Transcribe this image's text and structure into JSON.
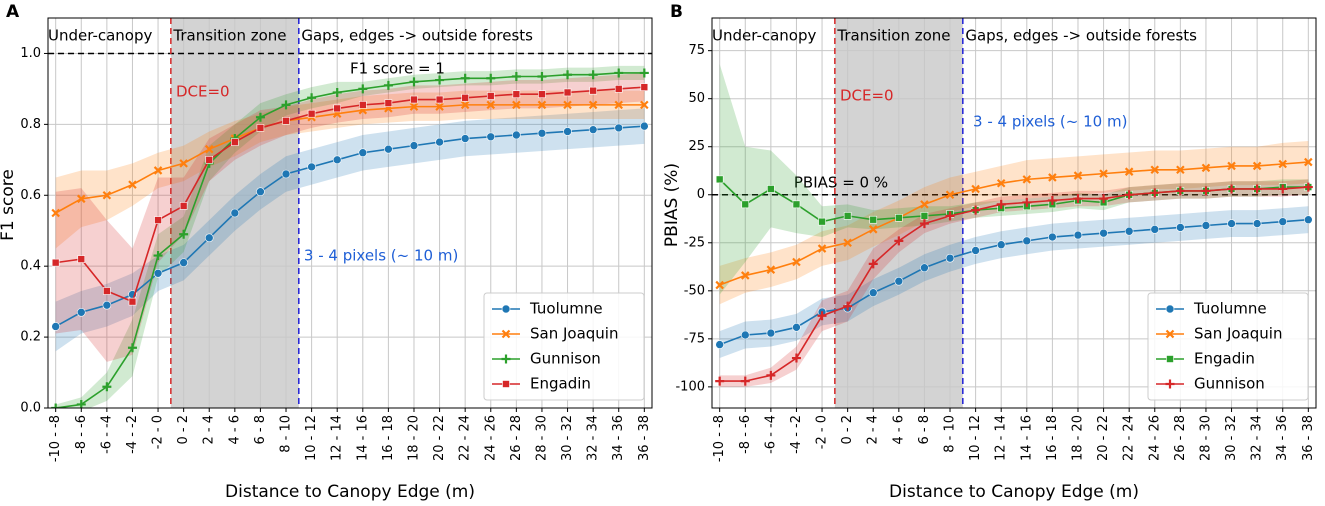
{
  "chart_data": [
    {
      "type": "line",
      "panel_label": "A",
      "ylabel": "F1 score",
      "xlabel": "Distance to Canopy Edge (m)",
      "categories": [
        "-10 - -8",
        "-8 - -6",
        "-6 - -4",
        "-4 - -2",
        "-2 - 0",
        "0 - 2",
        "2 - 4",
        "4 - 6",
        "6 - 8",
        "8 - 10",
        "10 - 12",
        "12 - 14",
        "14 - 16",
        "16 - 18",
        "18 - 20",
        "20 - 22",
        "22 - 24",
        "24 - 26",
        "26 - 28",
        "28 - 30",
        "30 - 32",
        "32 - 34",
        "34 - 36",
        "36 - 38"
      ],
      "series": [
        {
          "name": "Tuolumne",
          "color": "#1f77b4",
          "marker": "circle",
          "values": [
            0.23,
            0.27,
            0.29,
            0.32,
            0.38,
            0.41,
            0.48,
            0.55,
            0.61,
            0.66,
            0.68,
            0.7,
            0.72,
            0.73,
            0.74,
            0.75,
            0.76,
            0.765,
            0.77,
            0.775,
            0.78,
            0.785,
            0.79,
            0.795
          ],
          "spread": [
            0.07,
            0.06,
            0.06,
            0.06,
            0.05,
            0.05,
            0.05,
            0.05,
            0.05,
            0.05,
            0.05,
            0.05,
            0.05,
            0.05,
            0.05,
            0.05,
            0.05,
            0.05,
            0.05,
            0.05,
            0.05,
            0.05,
            0.05,
            0.05
          ]
        },
        {
          "name": "San Joaquin",
          "color": "#ff7f0e",
          "marker": "x",
          "values": [
            0.55,
            0.59,
            0.6,
            0.63,
            0.67,
            0.69,
            0.73,
            0.76,
            0.79,
            0.81,
            0.82,
            0.83,
            0.84,
            0.845,
            0.85,
            0.85,
            0.855,
            0.855,
            0.855,
            0.855,
            0.855,
            0.855,
            0.855,
            0.855
          ],
          "spread": [
            0.1,
            0.08,
            0.07,
            0.06,
            0.05,
            0.05,
            0.05,
            0.05,
            0.04,
            0.04,
            0.04,
            0.04,
            0.04,
            0.04,
            0.04,
            0.04,
            0.04,
            0.04,
            0.04,
            0.04,
            0.04,
            0.04,
            0.04,
            0.04
          ]
        },
        {
          "name": "Gunnison",
          "color": "#2ca02c",
          "marker": "plus",
          "values": [
            0.0,
            0.01,
            0.06,
            0.17,
            0.43,
            0.49,
            0.69,
            0.76,
            0.82,
            0.855,
            0.875,
            0.89,
            0.9,
            0.91,
            0.92,
            0.925,
            0.93,
            0.93,
            0.935,
            0.935,
            0.94,
            0.94,
            0.945,
            0.945
          ],
          "spread": [
            0.01,
            0.02,
            0.04,
            0.08,
            0.06,
            0.05,
            0.05,
            0.04,
            0.04,
            0.03,
            0.03,
            0.03,
            0.02,
            0.02,
            0.02,
            0.02,
            0.02,
            0.02,
            0.02,
            0.02,
            0.02,
            0.02,
            0.02,
            0.02
          ]
        },
        {
          "name": "Engadin",
          "color": "#d62728",
          "marker": "square",
          "values": [
            0.41,
            0.42,
            0.33,
            0.3,
            0.53,
            0.57,
            0.7,
            0.75,
            0.79,
            0.81,
            0.83,
            0.845,
            0.855,
            0.86,
            0.87,
            0.87,
            0.875,
            0.88,
            0.885,
            0.885,
            0.89,
            0.895,
            0.9,
            0.905
          ],
          "spread": [
            0.2,
            0.2,
            0.2,
            0.15,
            0.12,
            0.08,
            0.06,
            0.05,
            0.05,
            0.04,
            0.04,
            0.04,
            0.04,
            0.04,
            0.04,
            0.04,
            0.04,
            0.04,
            0.04,
            0.04,
            0.04,
            0.04,
            0.04,
            0.04
          ]
        }
      ],
      "ylim": [
        0,
        1.1
      ],
      "yticks": [
        {
          "value": 0,
          "label": "0.0"
        },
        0.2,
        0.4,
        0.6,
        0.8,
        {
          "value": 1,
          "label": "1.0"
        }
      ],
      "grid": true,
      "legend": "lower right",
      "reference_line": {
        "value": 1,
        "label": "F1 score = 1"
      },
      "annotations": [
        "Under-canopy",
        "Transition zone",
        "Gaps, edges -> outside forests",
        "DCE=0",
        "3 - 4 pixels (~ 10 m)"
      ]
    },
    {
      "type": "line",
      "panel_label": "B",
      "ylabel": "PBIAS (%)",
      "xlabel": "Distance to Canopy Edge (m)",
      "categories": [
        "-10 - -8",
        "-8 - -6",
        "-6 - -4",
        "-4 - -2",
        "-2 - 0",
        "0 - 2",
        "2 - 4",
        "4 - 6",
        "6 - 8",
        "8 - 10",
        "10 - 12",
        "12 - 14",
        "14 - 16",
        "16 - 18",
        "18 - 20",
        "20 - 22",
        "22 - 24",
        "24 - 26",
        "26 - 28",
        "28 - 30",
        "30 - 32",
        "32 - 34",
        "34 - 36",
        "36 - 38"
      ],
      "series": [
        {
          "name": "Tuolumne",
          "color": "#1f77b4",
          "marker": "circle",
          "values": [
            -78,
            -73,
            -72,
            -69,
            -61,
            -59,
            -51,
            -45,
            -38,
            -33,
            -29,
            -26,
            -24,
            -22,
            -21,
            -20,
            -19,
            -18,
            -17,
            -16,
            -15,
            -15,
            -14,
            -13
          ],
          "spread": [
            7,
            7,
            7,
            7,
            7,
            7,
            7,
            7,
            7,
            7,
            7,
            7,
            7,
            7,
            7,
            7,
            7,
            7,
            7,
            7,
            7,
            7,
            7,
            7
          ]
        },
        {
          "name": "San Joaquin",
          "color": "#ff7f0e",
          "marker": "x",
          "values": [
            -47,
            -42,
            -39,
            -35,
            -28,
            -25,
            -18,
            -12,
            -5,
            0,
            3,
            6,
            8,
            9,
            10,
            11,
            12,
            13,
            13,
            14,
            15,
            15,
            16,
            17
          ],
          "spread": [
            10,
            9,
            9,
            9,
            9,
            9,
            9,
            9,
            9,
            9,
            9,
            9,
            10,
            10,
            10,
            10,
            10,
            10,
            10,
            10,
            10,
            10,
            11,
            11
          ]
        },
        {
          "name": "Engadin",
          "color": "#2ca02c",
          "marker": "square",
          "values": [
            8,
            -5,
            3,
            -5,
            -14,
            -11,
            -13,
            -12,
            -11,
            -10,
            -8,
            -7,
            -6,
            -5,
            -3,
            -4,
            0,
            1,
            2,
            2,
            3,
            3,
            4,
            4
          ],
          "spread": [
            60,
            30,
            20,
            15,
            8,
            6,
            5,
            5,
            5,
            4,
            4,
            4,
            4,
            4,
            4,
            4,
            4,
            4,
            4,
            4,
            4,
            4,
            4,
            4
          ]
        },
        {
          "name": "Gunnison",
          "color": "#d62728",
          "marker": "plus",
          "values": [
            -97,
            -97,
            -94,
            -85,
            -63,
            -58,
            -36,
            -24,
            -15,
            -11,
            -8,
            -5,
            -4,
            -3,
            -2,
            -2,
            0,
            1,
            2,
            2,
            3,
            3,
            3,
            4
          ],
          "spread": [
            3,
            3,
            4,
            6,
            8,
            8,
            8,
            6,
            5,
            4,
            4,
            4,
            4,
            4,
            4,
            4,
            4,
            4,
            4,
            4,
            4,
            4,
            4,
            4
          ]
        }
      ],
      "ylim": [
        -111,
        92
      ],
      "yticks": [
        -100,
        -75,
        -50,
        -25,
        0,
        25,
        50,
        75
      ],
      "grid": true,
      "legend": "lower right",
      "reference_line": {
        "value": 0,
        "label": "PBIAS = 0 %"
      },
      "annotations": [
        "Under-canopy",
        "Transition zone",
        "Gaps, edges -> outside forests",
        "DCE=0",
        "3 - 4 pixels (~ 10 m)"
      ]
    }
  ]
}
